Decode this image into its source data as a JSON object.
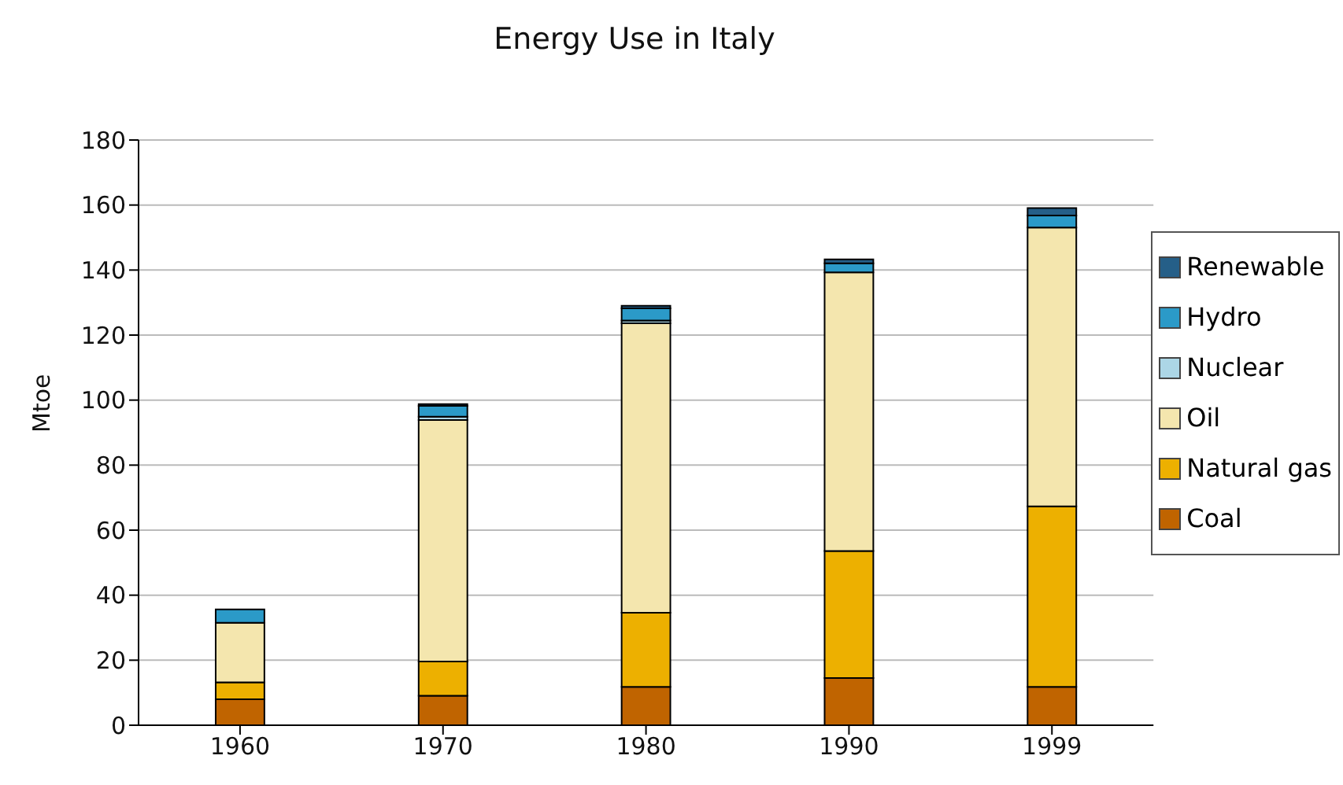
{
  "chart_data": {
    "type": "bar",
    "title": "Energy Use in Italy",
    "ylabel": "Mtoe",
    "categories": [
      "1960",
      "1970",
      "1980",
      "1990",
      "1999"
    ],
    "stacked": true,
    "ylim": [
      0,
      180
    ],
    "yticks": [
      0,
      20,
      40,
      60,
      80,
      100,
      120,
      140,
      160,
      180
    ],
    "grid": "y",
    "legend": "right",
    "series": [
      {
        "name": "Coal",
        "color": "#c06400",
        "values": [
          8,
          9.1,
          11.8,
          14.5,
          11.8
        ]
      },
      {
        "name": "Natural gas",
        "color": "#edb000",
        "values": [
          5.2,
          10.5,
          22.8,
          39.1,
          55.5
        ]
      },
      {
        "name": "Oil",
        "color": "#f4e6ae",
        "values": [
          18.3,
          74.3,
          89,
          85.7,
          85.8
        ]
      },
      {
        "name": "Nuclear",
        "color": "#acd6e6",
        "values": [
          0,
          1,
          0.9,
          0,
          0
        ]
      },
      {
        "name": "Hydro",
        "color": "#2b9ac8",
        "values": [
          4.1,
          3.3,
          3.7,
          2.8,
          3.7
        ]
      },
      {
        "name": "Renewable",
        "color": "#255f88",
        "values": [
          0,
          0.6,
          0.8,
          1.2,
          2.3
        ]
      }
    ]
  }
}
